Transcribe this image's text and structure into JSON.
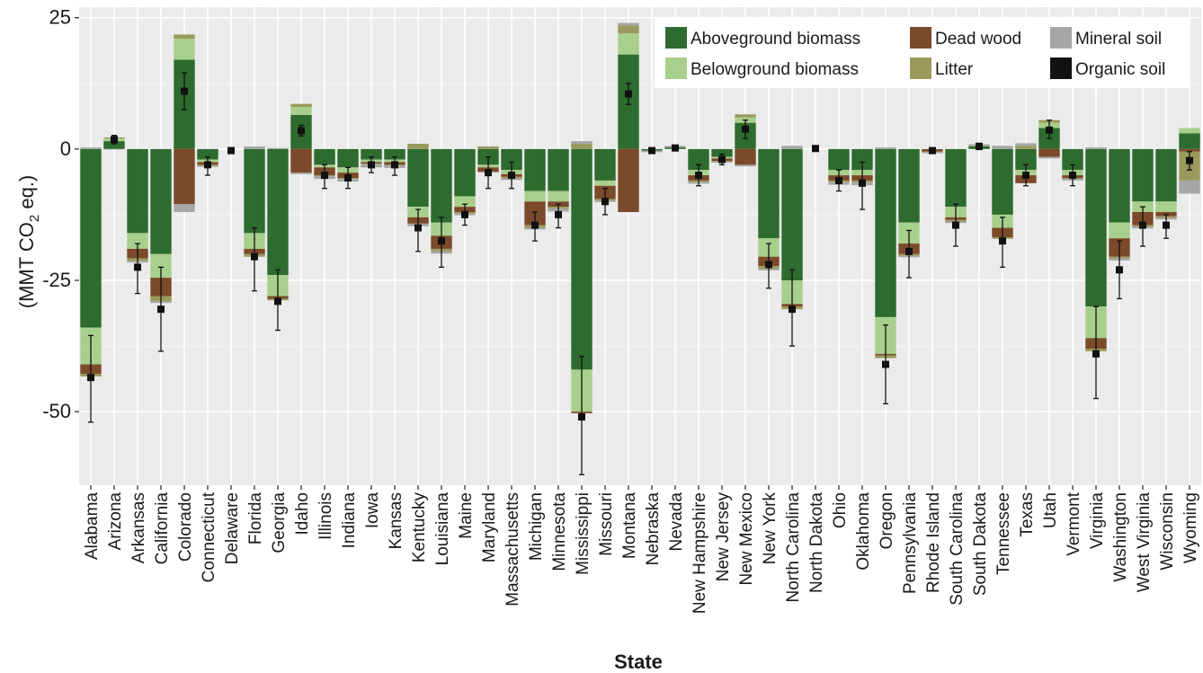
{
  "chart_data": {
    "type": "bar",
    "stacked": true,
    "xlabel": "State",
    "ylabel": "(MMT CO₂ eq.)",
    "ylabel_parts": {
      "main": "(MMT CO",
      "sub": "2",
      "tail": " eq.)"
    },
    "ylim": [
      -64,
      27
    ],
    "yticks": [
      25,
      0,
      -25,
      -50
    ],
    "grid": true,
    "legend_position": "top-right",
    "categories": [
      "Alabama",
      "Arizona",
      "Arkansas",
      "California",
      "Colorado",
      "Connecticut",
      "Delaware",
      "Florida",
      "Georgia",
      "Idaho",
      "Illinois",
      "Indiana",
      "Iowa",
      "Kansas",
      "Kentucky",
      "Louisiana",
      "Maine",
      "Maryland",
      "Massachusetts",
      "Michigan",
      "Minnesota",
      "Mississippi",
      "Missouri",
      "Montana",
      "Nebraska",
      "Nevada",
      "New Hampshire",
      "New Jersey",
      "New Mexico",
      "New York",
      "North Carolina",
      "North Dakota",
      "Ohio",
      "Oklahoma",
      "Oregon",
      "Pennsylvania",
      "Rhode Island",
      "South Carolina",
      "South Dakota",
      "Tennessee",
      "Texas",
      "Utah",
      "Vermont",
      "Virginia",
      "Washington",
      "West Virginia",
      "Wisconsin",
      "Wyoming"
    ],
    "series": [
      {
        "name": "Aboveground biomass",
        "color": "#2e6b2e",
        "values": [
          -34,
          1.5,
          -16,
          -20,
          17,
          -2,
          0,
          -16,
          -24,
          6.5,
          -3,
          -3.5,
          -2,
          -2,
          -11,
          -14,
          -9,
          -3,
          -4,
          -8,
          -8,
          -42,
          -6,
          18,
          -0.3,
          0.3,
          -4,
          -1.5,
          5,
          -17,
          -25,
          0,
          -4,
          -4,
          -32,
          -14,
          0,
          -11,
          0.5,
          -12.5,
          -4,
          4,
          -4,
          -30,
          -14,
          -10,
          -10,
          3
        ]
      },
      {
        "name": "Belowground biomass",
        "color": "#a8d08d",
        "values": [
          -7,
          0.5,
          -3,
          -4.5,
          4,
          -0.5,
          0,
          -3,
          -4,
          1.5,
          -0.5,
          -1,
          -0.5,
          -0.5,
          -2,
          -2.5,
          -2,
          -0.5,
          -0.8,
          -2,
          -2,
          -8,
          -1,
          4,
          0,
          0,
          -1,
          -0.3,
          1,
          -3.5,
          -4.5,
          0,
          -1,
          -1,
          -7,
          -4,
          0,
          -2,
          0,
          -2.5,
          -1,
          1,
          -1,
          -6,
          -3,
          -2,
          -2,
          1
        ]
      },
      {
        "name": "Dead wood",
        "color": "#7b4a2a",
        "values": [
          -1.8,
          0,
          -1.8,
          -3.5,
          -10.5,
          -0.5,
          0,
          -1,
          -0.5,
          -4.5,
          -1.5,
          -1,
          -0.3,
          -0.5,
          -1.2,
          -2.5,
          -1,
          -0.8,
          -0.5,
          -4.5,
          -1,
          -0.3,
          -2.5,
          -12,
          0,
          0,
          -1,
          -0.5,
          -3,
          -1.8,
          -0.5,
          0,
          -1,
          -1,
          -0.3,
          -2,
          -0.5,
          -0.5,
          0,
          -1.8,
          -1.5,
          -1.5,
          -0.5,
          -2,
          -3.5,
          -2.5,
          -0.8,
          -0.5
        ]
      },
      {
        "name": "Litter",
        "color": "#9a9a5c",
        "values": [
          -0.5,
          0.2,
          -0.5,
          -1,
          0.8,
          -0.2,
          0,
          -0.5,
          -0.3,
          0.6,
          -0.2,
          -0.2,
          -0.1,
          -0.1,
          1,
          -0.5,
          -0.3,
          0.5,
          -0.3,
          -0.5,
          -0.3,
          1,
          -0.3,
          1.5,
          0,
          0,
          -0.3,
          -0.1,
          0.6,
          -0.5,
          -0.5,
          0,
          -0.3,
          -0.3,
          -0.5,
          -0.3,
          -0.1,
          -0.3,
          0.1,
          -0.3,
          0.6,
          0.5,
          -0.2,
          -0.5,
          -0.3,
          -0.3,
          -0.3,
          -5.5
        ]
      },
      {
        "name": "Mineral soil",
        "color": "#a6a6a6",
        "values": [
          0.3,
          -0.1,
          -0.3,
          -0.3,
          -1.5,
          -0.2,
          0,
          0.5,
          0.2,
          -0.3,
          -0.5,
          -0.5,
          -0.6,
          -0.5,
          -0.5,
          -0.4,
          -0.3,
          -0.2,
          -0.3,
          -0.3,
          -0.6,
          0.5,
          -0.3,
          0.5,
          -0.3,
          0.3,
          -0.3,
          -0.2,
          -0.3,
          -0.3,
          0.6,
          0,
          -0.5,
          -0.6,
          0.3,
          -0.3,
          -0.2,
          -0.3,
          0.3,
          0.6,
          0.5,
          -0.3,
          -0.3,
          0.3,
          -0.4,
          -0.3,
          -0.3,
          -2.5
        ]
      },
      {
        "name": "Organic soil",
        "color": "#111111",
        "values": [
          0,
          0,
          0,
          0,
          0,
          0,
          0,
          0,
          0,
          0,
          0,
          0,
          0,
          0,
          0,
          0,
          0,
          0,
          0,
          0,
          0,
          0,
          0,
          0,
          0,
          0,
          0,
          0,
          0,
          0,
          0,
          0,
          0,
          0,
          0,
          0,
          0,
          0,
          0,
          0,
          0,
          0,
          0,
          0,
          0,
          0,
          0,
          0
        ]
      }
    ],
    "net_totals": [
      -43.5,
      1.8,
      -22.5,
      -30.5,
      11,
      -3,
      -0.3,
      -20.5,
      -29,
      3.5,
      -5,
      -5.5,
      -3,
      -3,
      -15,
      -17.5,
      -12.5,
      -4.5,
      -5,
      -14.5,
      -12.5,
      -51,
      -10,
      10.5,
      -0.3,
      0.2,
      -5,
      -2,
      3.8,
      -22,
      -30.5,
      0.1,
      -6,
      -6.5,
      -41,
      -19.5,
      -0.3,
      -14.5,
      0.5,
      -17.5,
      -5,
      3.6,
      -5,
      -39,
      -23,
      -14.5,
      -14.5,
      -2.2
    ],
    "error_bars": [
      [
        -52,
        -35.5
      ],
      [
        1,
        2.6
      ],
      [
        -27.5,
        -18
      ],
      [
        -38.5,
        -22.5
      ],
      [
        7.5,
        14.5
      ],
      [
        -5,
        -1.5
      ],
      [
        -0.8,
        0.2
      ],
      [
        -27,
        -15
      ],
      [
        -34.5,
        -23
      ],
      [
        2.5,
        4.5
      ],
      [
        -7.5,
        -3
      ],
      [
        -7.5,
        -3.5
      ],
      [
        -4.5,
        -1.5
      ],
      [
        -5,
        -1.5
      ],
      [
        -19.5,
        -11.5
      ],
      [
        -22.5,
        -13
      ],
      [
        -14.5,
        -10.5
      ],
      [
        -7.5,
        -1.5
      ],
      [
        -7.5,
        -2.5
      ],
      [
        -17.5,
        -12
      ],
      [
        -15,
        -10.5
      ],
      [
        -62,
        -39.5
      ],
      [
        -12.5,
        -7.5
      ],
      [
        8.5,
        12.5
      ],
      [
        -0.8,
        0.2
      ],
      [
        -0.3,
        0.7
      ],
      [
        -7,
        -3
      ],
      [
        -3,
        -1
      ],
      [
        2,
        5.5
      ],
      [
        -26.5,
        -18
      ],
      [
        -37.5,
        -23
      ],
      [
        -0.3,
        0.5
      ],
      [
        -8,
        -4
      ],
      [
        -11.5,
        -2.5
      ],
      [
        -48.5,
        -33.5
      ],
      [
        -24.5,
        -15.5
      ],
      [
        -0.8,
        0.2
      ],
      [
        -18.5,
        -10.5
      ],
      [
        -0.1,
        1.1
      ],
      [
        -22.5,
        -13
      ],
      [
        -7,
        -3
      ],
      [
        2,
        5.5
      ],
      [
        -7,
        -3
      ],
      [
        -47.5,
        -30
      ],
      [
        -28.5,
        -17.5
      ],
      [
        -18.5,
        -11
      ],
      [
        -17,
        -12.5
      ],
      [
        -4,
        -0.5
      ]
    ]
  }
}
